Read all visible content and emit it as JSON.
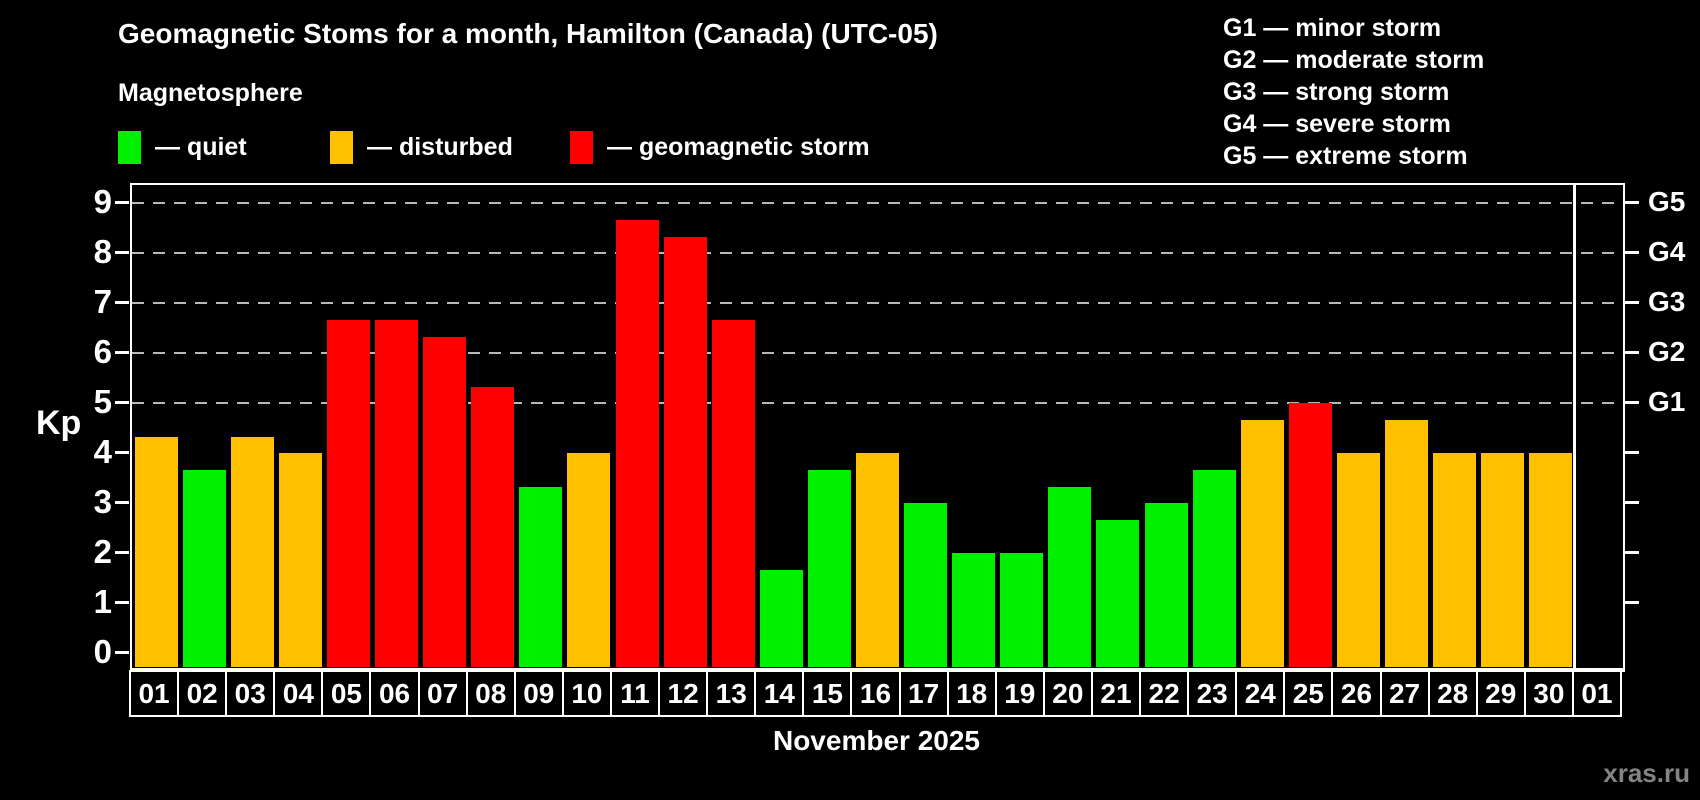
{
  "header": {
    "title": "Geomagnetic Stoms for a month, Hamilton (Canada) (UTC-05)",
    "subtitle": "Magnetosphere"
  },
  "legend": {
    "items": [
      {
        "name": "quiet",
        "label": "— quiet",
        "color": "#00f000"
      },
      {
        "name": "disturbed",
        "label": "— disturbed",
        "color": "#ffc000"
      },
      {
        "name": "storm",
        "label": "— geomagnetic storm",
        "color": "#ff0000"
      }
    ]
  },
  "g_legend": {
    "lines": [
      "G1 — minor storm",
      "G2 — moderate storm",
      "G3 — strong storm",
      "G4 — severe storm",
      "G5 — extreme storm"
    ]
  },
  "footer": {
    "month_label": "November 2025",
    "watermark": "xras.ru"
  },
  "chart_data": {
    "type": "bar",
    "title": "Geomagnetic Stoms for a month, Hamilton (Canada) (UTC-05)",
    "ylabel": "Kp",
    "ylim": [
      0,
      9
    ],
    "yticks": [
      0,
      1,
      2,
      3,
      4,
      5,
      6,
      7,
      8,
      9
    ],
    "grid": "dashed horizontal lines at Kp 5,6,7,8,9",
    "legend_position": "top-left (status colors), top-right (G storm scale)",
    "right_axis": {
      "labels": [
        {
          "label": "G1",
          "kp": 5
        },
        {
          "label": "G2",
          "kp": 6
        },
        {
          "label": "G3",
          "kp": 7
        },
        {
          "label": "G4",
          "kp": 8
        },
        {
          "label": "G5",
          "kp": 9
        }
      ],
      "minor_ticks": [
        1,
        2,
        3,
        4
      ]
    },
    "categories": [
      "01",
      "02",
      "03",
      "04",
      "05",
      "06",
      "07",
      "08",
      "09",
      "10",
      "11",
      "12",
      "13",
      "14",
      "15",
      "16",
      "17",
      "18",
      "19",
      "20",
      "21",
      "22",
      "23",
      "24",
      "25",
      "26",
      "27",
      "28",
      "29",
      "30",
      "01"
    ],
    "values": [
      4.33,
      3.67,
      4.33,
      4.0,
      6.67,
      6.67,
      6.33,
      5.33,
      3.33,
      4.0,
      8.67,
      8.33,
      6.67,
      1.67,
      3.67,
      4.0,
      3.0,
      2.0,
      2.0,
      3.33,
      2.67,
      3.0,
      3.67,
      4.67,
      5.0,
      4.0,
      4.67,
      4.0,
      4.0,
      4.0,
      null
    ],
    "statuses": [
      "disturbed",
      "quiet",
      "disturbed",
      "disturbed",
      "storm",
      "storm",
      "storm",
      "storm",
      "quiet",
      "disturbed",
      "storm",
      "storm",
      "storm",
      "quiet",
      "quiet",
      "disturbed",
      "quiet",
      "quiet",
      "quiet",
      "quiet",
      "quiet",
      "quiet",
      "quiet",
      "disturbed",
      "storm",
      "disturbed",
      "disturbed",
      "disturbed",
      "disturbed",
      "disturbed",
      "none"
    ],
    "status_colors": {
      "quiet": "#00f000",
      "disturbed": "#ffc000",
      "storm": "#ff0000"
    }
  }
}
